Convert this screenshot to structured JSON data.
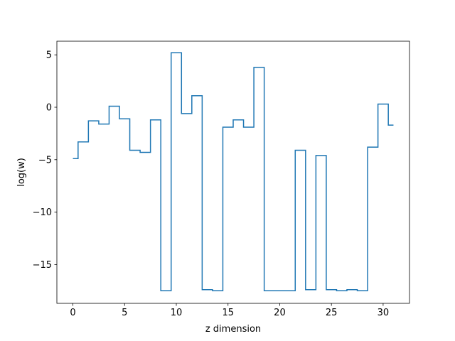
{
  "chart_data": {
    "type": "line",
    "drawstyle": "steps-mid",
    "xlabel": "z dimension",
    "ylabel": "log(w)",
    "xlim": [
      -1.55,
      32.55
    ],
    "ylim": [
      -18.7,
      6.3
    ],
    "xticks": [
      0,
      5,
      10,
      15,
      20,
      25,
      30
    ],
    "xtick_labels": [
      "0",
      "5",
      "10",
      "15",
      "20",
      "25",
      "30"
    ],
    "yticks": [
      5,
      0,
      -5,
      -10,
      -15
    ],
    "ytick_labels": [
      "5",
      "0",
      "−5",
      "−10",
      "−15"
    ],
    "grid": false,
    "color": "#1f77b4",
    "series": [
      {
        "x": [
          0,
          1,
          2,
          3,
          4,
          5,
          6,
          7,
          8,
          9,
          10,
          11,
          12,
          13,
          14,
          15,
          16,
          17,
          18,
          19,
          20,
          21,
          22,
          23,
          24,
          25,
          26,
          27,
          28,
          29,
          30,
          31
        ],
        "values": [
          -4.9,
          -3.3,
          -1.3,
          -1.6,
          0.1,
          -1.1,
          -4.1,
          -4.3,
          -1.2,
          -17.5,
          5.2,
          -0.6,
          1.1,
          -17.4,
          -17.5,
          -1.9,
          -1.2,
          -1.9,
          3.8,
          -17.5,
          -17.5,
          -17.5,
          -4.1,
          -17.4,
          -4.6,
          -17.4,
          -17.5,
          -17.4,
          -17.5,
          -3.8,
          0.3,
          -1.7
        ]
      }
    ]
  }
}
